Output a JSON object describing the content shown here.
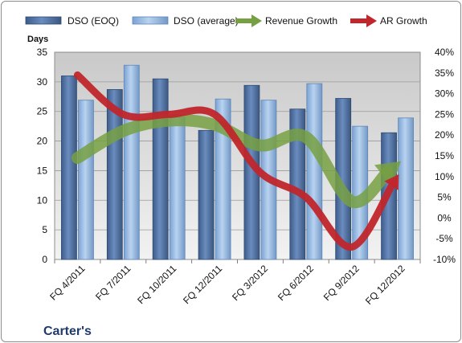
{
  "chart_data": {
    "type": "bar",
    "title": "Carter's",
    "ylabel": "Days",
    "y2label": "",
    "categories": [
      "FQ 4/2011",
      "FQ 7/2011",
      "FQ 10/2011",
      "FQ 12/2011",
      "FQ 3/2012",
      "FQ 6/2012",
      "FQ 9/2012",
      "FQ 12/2012"
    ],
    "ylim": [
      0,
      35
    ],
    "y2lim": [
      -10,
      40
    ],
    "y_ticks": [
      "0",
      "5",
      "10",
      "15",
      "20",
      "25",
      "30",
      "35"
    ],
    "y2_ticks": [
      "-10%",
      "-5%",
      "0%",
      "5%",
      "10%",
      "15%",
      "20%",
      "25%",
      "30%",
      "35%",
      "40%"
    ],
    "grid": true,
    "legend_position": "top",
    "series": [
      {
        "name": "DSO (EOQ)",
        "kind": "bar",
        "axis": "left",
        "color": "#4a6a9a",
        "values": [
          31.0,
          28.7,
          30.5,
          21.8,
          29.4,
          25.4,
          27.2,
          21.4
        ]
      },
      {
        "name": "DSO (average)",
        "kind": "bar",
        "axis": "left",
        "color": "#8fb4e0",
        "values": [
          26.9,
          32.8,
          24.0,
          27.1,
          26.9,
          29.7,
          22.5,
          23.9
        ]
      },
      {
        "name": "Revenue Growth",
        "kind": "line",
        "axis": "right",
        "color": "#77a043",
        "values": [
          14.5,
          21.0,
          23.5,
          22.5,
          17.5,
          19.5,
          4.0,
          13.0
        ]
      },
      {
        "name": "AR Growth",
        "kind": "line",
        "axis": "right",
        "color": "#c0262c",
        "values": [
          34.5,
          25.0,
          25.0,
          25.0,
          11.0,
          5.0,
          -7.0,
          10.0
        ]
      }
    ]
  }
}
